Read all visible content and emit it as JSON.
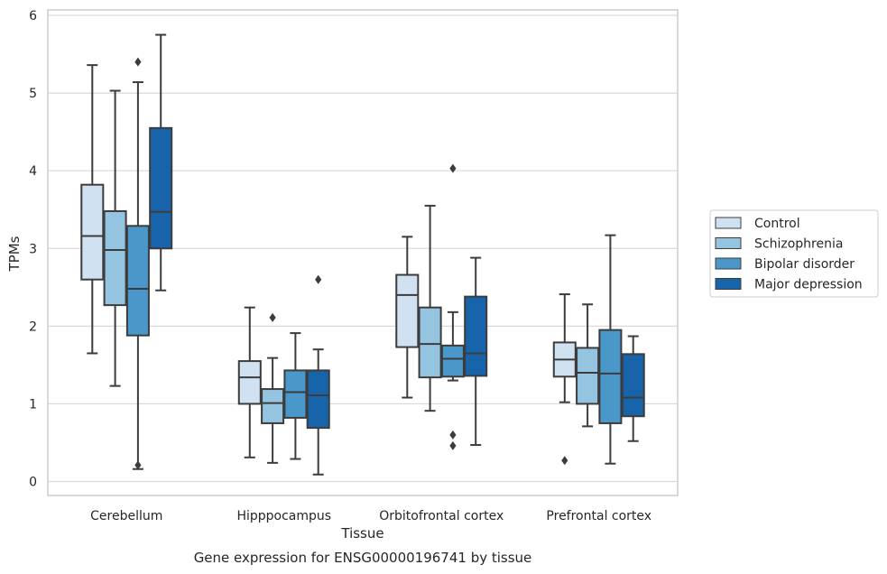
{
  "caption": "Gene expression for ENSG00000196741 by tissue",
  "chart_data": {
    "type": "box",
    "xlabel": "Tissue",
    "ylabel": "TPMs",
    "ylim": [
      -0.18,
      6.07
    ],
    "yticks": [
      0,
      1,
      2,
      3,
      4,
      5,
      6
    ],
    "grid": "horizontal",
    "legend_position": "right",
    "categories": [
      "Cerebellum",
      "Hipppocampus",
      "Orbitofrontal cortex",
      "Prefrontal cortex"
    ],
    "series": [
      {
        "name": "Control",
        "color": "#d0e1f2",
        "boxes": [
          {
            "whisker_low": 1.65,
            "q1": 2.6,
            "median": 3.16,
            "q3": 3.82,
            "whisker_high": 5.36,
            "outliers": []
          },
          {
            "whisker_low": 0.31,
            "q1": 1.0,
            "median": 1.34,
            "q3": 1.55,
            "whisker_high": 2.24,
            "outliers": []
          },
          {
            "whisker_low": 1.08,
            "q1": 1.73,
            "median": 2.4,
            "q3": 2.66,
            "whisker_high": 3.15,
            "outliers": []
          },
          {
            "whisker_low": 1.02,
            "q1": 1.35,
            "median": 1.57,
            "q3": 1.79,
            "whisker_high": 2.41,
            "outliers": [
              0.27
            ]
          }
        ]
      },
      {
        "name": "Schizophrenia",
        "color": "#94c4df",
        "boxes": [
          {
            "whisker_low": 1.23,
            "q1": 2.27,
            "median": 2.98,
            "q3": 3.48,
            "whisker_high": 5.03,
            "outliers": []
          },
          {
            "whisker_low": 0.24,
            "q1": 0.75,
            "median": 1.01,
            "q3": 1.19,
            "whisker_high": 1.59,
            "outliers": [
              2.11
            ]
          },
          {
            "whisker_low": 0.91,
            "q1": 1.34,
            "median": 1.77,
            "q3": 2.24,
            "whisker_high": 3.55,
            "outliers": []
          },
          {
            "whisker_low": 0.71,
            "q1": 1.0,
            "median": 1.4,
            "q3": 1.72,
            "whisker_high": 2.28,
            "outliers": []
          }
        ]
      },
      {
        "name": "Bipolar disorder",
        "color": "#4a98c9",
        "boxes": [
          {
            "whisker_low": 0.16,
            "q1": 1.88,
            "median": 2.48,
            "q3": 3.29,
            "whisker_high": 5.14,
            "outliers": [
              5.4,
              0.21
            ]
          },
          {
            "whisker_low": 0.29,
            "q1": 0.82,
            "median": 1.15,
            "q3": 1.43,
            "whisker_high": 1.91,
            "outliers": []
          },
          {
            "whisker_low": 1.3,
            "q1": 1.35,
            "median": 1.58,
            "q3": 1.75,
            "whisker_high": 2.18,
            "outliers": [
              4.03,
              0.6,
              0.46
            ]
          },
          {
            "whisker_low": 0.23,
            "q1": 0.75,
            "median": 1.39,
            "q3": 1.95,
            "whisker_high": 3.17,
            "outliers": []
          }
        ]
      },
      {
        "name": "Major depression",
        "color": "#1764ab",
        "boxes": [
          {
            "whisker_low": 2.46,
            "q1": 3.0,
            "median": 3.47,
            "q3": 4.55,
            "whisker_high": 5.75,
            "outliers": []
          },
          {
            "whisker_low": 0.09,
            "q1": 0.69,
            "median": 1.11,
            "q3": 1.43,
            "whisker_high": 1.7,
            "outliers": [
              2.6
            ]
          },
          {
            "whisker_low": 0.47,
            "q1": 1.36,
            "median": 1.65,
            "q3": 2.38,
            "whisker_high": 2.88,
            "outliers": []
          },
          {
            "whisker_low": 0.52,
            "q1": 0.84,
            "median": 1.08,
            "q3": 1.64,
            "whisker_high": 1.87,
            "outliers": []
          }
        ]
      }
    ]
  }
}
